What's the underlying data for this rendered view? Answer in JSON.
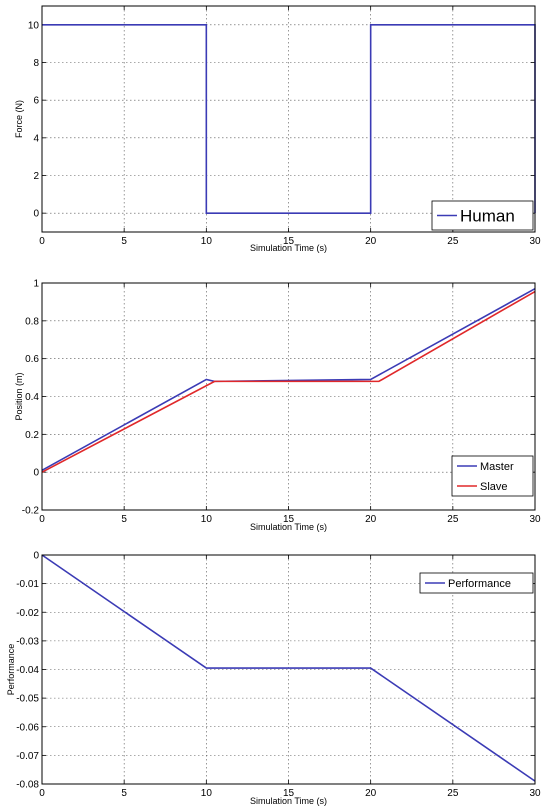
{
  "chart_data": [
    {
      "type": "line",
      "xlabel": "Simulation Time (s)",
      "ylabel": "Force (N)",
      "xlim": [
        0,
        30
      ],
      "ylim": [
        -1,
        11
      ],
      "xticks": [
        0,
        5,
        10,
        15,
        20,
        25,
        30
      ],
      "yticks": [
        0,
        2,
        4,
        6,
        8,
        10
      ],
      "xtick_labels": [
        "0",
        "5",
        "10",
        "15",
        "20",
        "25",
        "30"
      ],
      "ytick_labels": [
        "0",
        "2",
        "4",
        "6",
        "8",
        "10"
      ],
      "grid": true,
      "legend_position": "bottom-right",
      "legend_font": "large",
      "series": [
        {
          "name": "Human",
          "color": "#3b3bb5",
          "x": [
            0,
            10,
            10,
            20,
            20,
            30,
            30
          ],
          "y": [
            10,
            10,
            0,
            0,
            10,
            10,
            0
          ]
        }
      ]
    },
    {
      "type": "line",
      "xlabel": "Simulation Time (s)",
      "ylabel": "Position (m)",
      "xlim": [
        0,
        30
      ],
      "ylim": [
        -0.2,
        1
      ],
      "xticks": [
        0,
        5,
        10,
        15,
        20,
        25,
        30
      ],
      "yticks": [
        -0.2,
        0,
        0.2,
        0.4,
        0.6,
        0.8,
        1
      ],
      "xtick_labels": [
        "0",
        "5",
        "10",
        "15",
        "20",
        "25",
        "30"
      ],
      "ytick_labels": [
        "-0.2",
        "0",
        "0.2",
        "0.4",
        "0.6",
        "0.8",
        "1"
      ],
      "grid": true,
      "legend_position": "bottom-right",
      "series": [
        {
          "name": "Master",
          "color": "#3b3bb5",
          "x": [
            0,
            10,
            10.5,
            20,
            30
          ],
          "y": [
            0.01,
            0.49,
            0.48,
            0.49,
            0.97
          ]
        },
        {
          "name": "Slave",
          "color": "#e0282a",
          "x": [
            0,
            10.5,
            20.5,
            30
          ],
          "y": [
            0,
            0.48,
            0.48,
            0.955
          ]
        }
      ]
    },
    {
      "type": "line",
      "xlabel": "Simulation Time (s)",
      "ylabel": "Performance",
      "xlim": [
        0,
        30
      ],
      "ylim": [
        -0.08,
        0
      ],
      "xticks": [
        0,
        5,
        10,
        15,
        20,
        25,
        30
      ],
      "yticks": [
        -0.08,
        -0.07,
        -0.06,
        -0.05,
        -0.04,
        -0.03,
        -0.02,
        -0.01,
        0
      ],
      "xtick_labels": [
        "0",
        "5",
        "10",
        "15",
        "20",
        "25",
        "30"
      ],
      "ytick_labels": [
        "-0.08",
        "-0.07",
        "-0.06",
        "-0.05",
        "-0.04",
        "-0.03",
        "-0.02",
        "-0.01",
        "0"
      ],
      "grid": true,
      "legend_position": "top-right",
      "series": [
        {
          "name": "Performance",
          "color": "#3b3bb5",
          "x": [
            0,
            10,
            20,
            30
          ],
          "y": [
            0,
            -0.0395,
            -0.0395,
            -0.079
          ]
        }
      ]
    }
  ]
}
